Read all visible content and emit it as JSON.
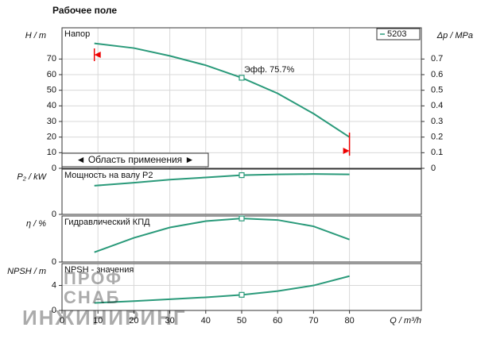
{
  "title": "Рабочее поле",
  "watermark": [
    "ПРОФ",
    "СНАБ",
    "ИНЖИНИРИНГ"
  ],
  "chart_data": [
    {
      "type": "line",
      "title": "Напор",
      "ylabel": "H / m",
      "y2label": "Δp / MPa",
      "x": [
        9,
        20,
        30,
        40,
        50,
        60,
        70,
        80
      ],
      "xlim": [
        0,
        100
      ],
      "ylim": [
        0,
        90
      ],
      "yticks": [
        0,
        10,
        20,
        30,
        40,
        50,
        60,
        70
      ],
      "y2lim": [
        0,
        0.9
      ],
      "y2ticks": [
        0,
        0.1,
        0.2,
        0.3,
        0.4,
        0.5,
        0.6,
        0.7
      ],
      "series": [
        {
          "name": "5203",
          "color": "#2a9a7a",
          "values": [
            80,
            77,
            72,
            66,
            58,
            48,
            35,
            20
          ]
        }
      ],
      "marker_at": 50,
      "annotation": "Эфф. 75.7%",
      "range_label": "◄ Область применения ►",
      "application_range": [
        9,
        80
      ],
      "grid": true
    },
    {
      "type": "line",
      "title": "Мощность на валу P2",
      "ylabel": "P₂ / kW",
      "x": [
        9,
        20,
        30,
        40,
        50,
        60,
        70,
        80
      ],
      "xlim": [
        0,
        100
      ],
      "ylim": [
        0,
        6
      ],
      "yticks": [
        0
      ],
      "series": [
        {
          "color": "#2a9a7a",
          "values": [
            3.8,
            4.2,
            4.6,
            4.9,
            5.2,
            5.3,
            5.35,
            5.3
          ]
        }
      ],
      "marker_at": 50,
      "grid": true
    },
    {
      "type": "line",
      "title": "Гидравлический КПД",
      "ylabel": "η / %",
      "x": [
        9,
        20,
        30,
        40,
        50,
        60,
        70,
        80
      ],
      "xlim": [
        0,
        100
      ],
      "ylim": [
        0,
        80
      ],
      "yticks": [
        0
      ],
      "series": [
        {
          "color": "#2a9a7a",
          "values": [
            17,
            42,
            60,
            71,
            75.7,
            73,
            62,
            39
          ]
        }
      ],
      "marker_at": 50,
      "grid": true
    },
    {
      "type": "line",
      "title": "NPSH - значения",
      "ylabel": "NPSH / m",
      "xlabel": "Q / m³/h",
      "x": [
        9,
        20,
        30,
        40,
        50,
        60,
        70,
        80
      ],
      "xlim": [
        0,
        100
      ],
      "xticks": [
        0,
        10,
        20,
        30,
        40,
        50,
        60,
        70,
        80
      ],
      "ylim": [
        0,
        7.5
      ],
      "yticks": [
        0,
        4
      ],
      "series": [
        {
          "color": "#2a9a7a",
          "values": [
            1.2,
            1.5,
            1.8,
            2.1,
            2.5,
            3.1,
            4.0,
            5.5
          ]
        }
      ],
      "marker_at": 50,
      "grid": true
    }
  ]
}
